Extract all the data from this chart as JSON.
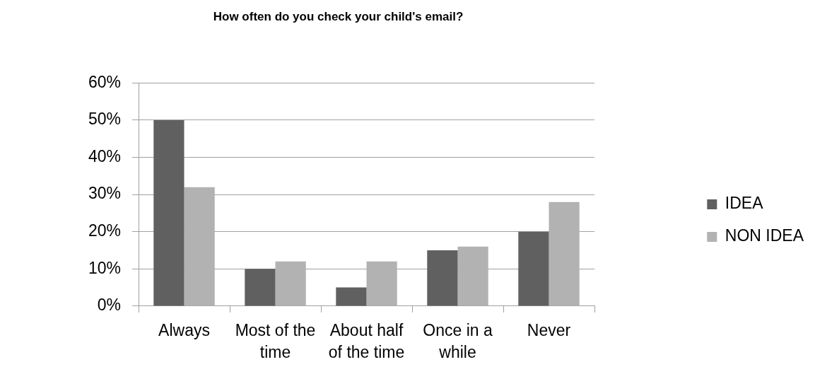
{
  "chart_data": {
    "type": "bar",
    "title": "How often do you check your child's email?",
    "categories": [
      "Always",
      "Most of the time",
      "About half of the time",
      "Once in a while",
      "Never"
    ],
    "series": [
      {
        "name": "IDEA",
        "color": "#606060",
        "values": [
          50,
          10,
          5,
          15,
          20
        ]
      },
      {
        "name": "NON IDEA",
        "color": "#b2b2b2",
        "values": [
          32,
          12,
          12,
          16,
          28
        ]
      }
    ],
    "ylim": [
      0,
      60
    ],
    "yticks": [
      {
        "value": 0,
        "label": "0%"
      },
      {
        "value": 10,
        "label": "10%"
      },
      {
        "value": 20,
        "label": "20%"
      },
      {
        "value": 30,
        "label": "30%"
      },
      {
        "value": 40,
        "label": "40%"
      },
      {
        "value": 50,
        "label": "50%"
      },
      {
        "value": 60,
        "label": "60%"
      }
    ],
    "grid": "y",
    "legend": "right"
  }
}
